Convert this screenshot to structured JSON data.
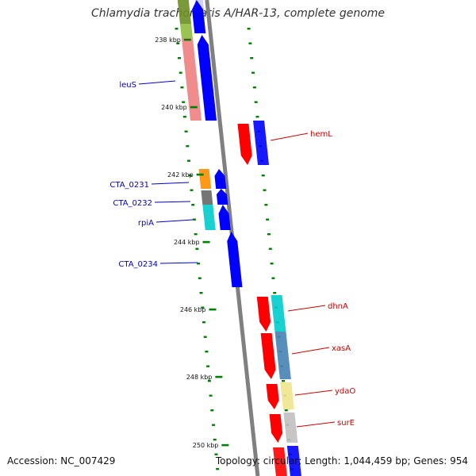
{
  "title": "Chlamydia trachomatis A/HAR-13, complete genome",
  "footer": {
    "accession": "Accession: NC_007429",
    "summary": "Topology: circular; Length: 1,044,459 bp; Genes: 954"
  },
  "scale_labels": [
    "238 kbp",
    "240 kbp",
    "242 kbp",
    "244 kbp",
    "246 kbp",
    "248 kbp",
    "250 kbp"
  ],
  "genes": [
    {
      "name": "leuS",
      "strand": "forward",
      "color": "#0000ff"
    },
    {
      "name": "hemL",
      "strand": "reverse",
      "color": "#ff0000"
    },
    {
      "name": "CTA_0231",
      "strand": "forward",
      "color": "#0000ff"
    },
    {
      "name": "CTA_0232",
      "strand": "forward",
      "color": "#0000ff"
    },
    {
      "name": "rpiA",
      "strand": "forward",
      "color": "#0000ff"
    },
    {
      "name": "CTA_0234",
      "strand": "forward",
      "color": "#0000ff"
    },
    {
      "name": "dhnA",
      "strand": "reverse",
      "color": "#ff0000"
    },
    {
      "name": "xasA",
      "strand": "reverse",
      "color": "#ff0000"
    },
    {
      "name": "ydaO",
      "strand": "reverse",
      "color": "#ff0000"
    },
    {
      "name": "surE",
      "strand": "reverse",
      "color": "#ff0000"
    }
  ],
  "colors": {
    "backbone": "#808080",
    "forward": "#0000ff",
    "reverse": "#ff0000",
    "tick": "#008000",
    "label_forward": "#0000cc",
    "label_reverse": "#cc0000"
  }
}
